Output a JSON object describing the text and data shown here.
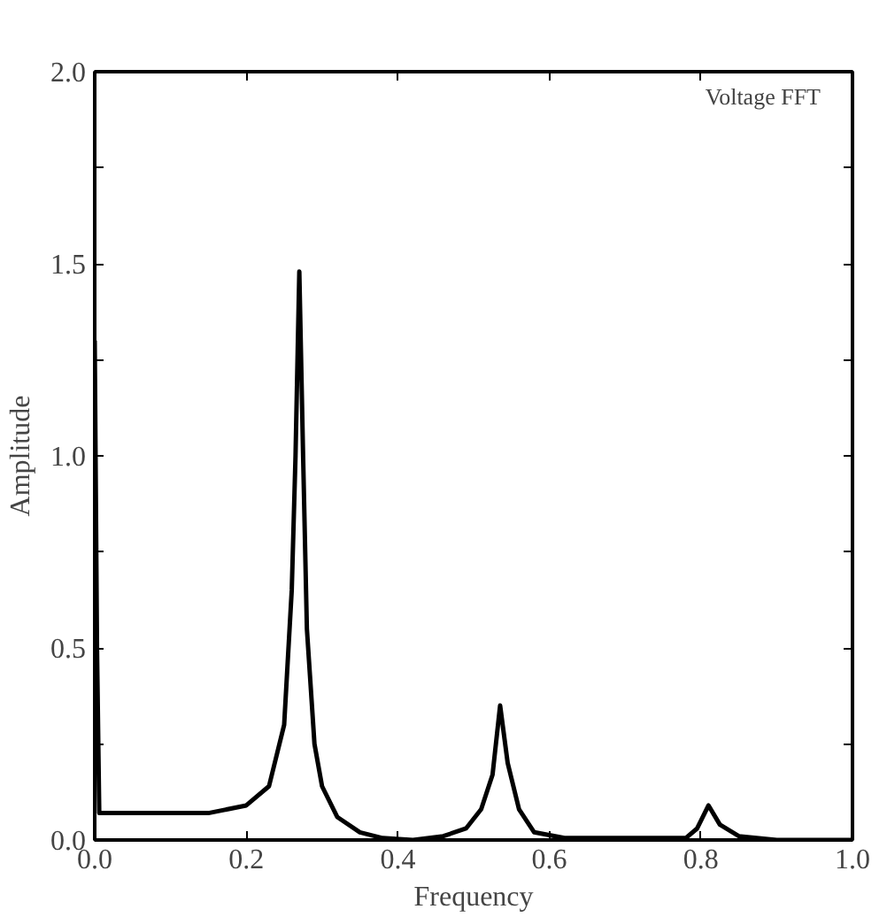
{
  "chart_data": {
    "type": "line",
    "xlabel": "Frequency",
    "ylabel": "Amplitude",
    "annotations": [
      "Voltage FFT"
    ],
    "x": [
      0,
      0.003,
      0.006,
      0.05,
      0.1,
      0.15,
      0.2,
      0.23,
      0.25,
      0.26,
      0.265,
      0.27,
      0.275,
      0.28,
      0.29,
      0.3,
      0.32,
      0.35,
      0.38,
      0.42,
      0.46,
      0.49,
      0.51,
      0.525,
      0.535,
      0.545,
      0.56,
      0.58,
      0.62,
      0.7,
      0.78,
      0.795,
      0.81,
      0.825,
      0.85,
      0.9,
      1.0
    ],
    "values": [
      1.3,
      0.5,
      0.07,
      0.07,
      0.07,
      0.07,
      0.09,
      0.14,
      0.3,
      0.65,
      1.0,
      1.48,
      1.0,
      0.55,
      0.25,
      0.14,
      0.06,
      0.02,
      0.005,
      0.0,
      0.01,
      0.03,
      0.08,
      0.17,
      0.35,
      0.2,
      0.08,
      0.02,
      0.005,
      0.005,
      0.005,
      0.03,
      0.09,
      0.04,
      0.01,
      0.0,
      0.0
    ],
    "color": "#000000",
    "line_style": "solid",
    "marker": "none",
    "xlim": [
      0,
      1
    ],
    "ylim": [
      0,
      2
    ],
    "xticks": [
      {
        "value": 0,
        "label": "0.0"
      },
      0.2,
      0.4,
      0.6,
      0.8,
      {
        "value": 1,
        "label": "1.0"
      }
    ],
    "yticks": [
      {
        "value": 0,
        "label": "0.0"
      },
      {
        "value": 0.25,
        "label": null
      },
      0.5,
      {
        "value": 0.75,
        "label": null
      },
      {
        "value": 1,
        "label": "1.0"
      },
      {
        "value": 1.25,
        "label": null
      },
      1.5,
      {
        "value": 1.75,
        "label": null
      },
      {
        "value": 2,
        "label": "2.0"
      }
    ]
  }
}
